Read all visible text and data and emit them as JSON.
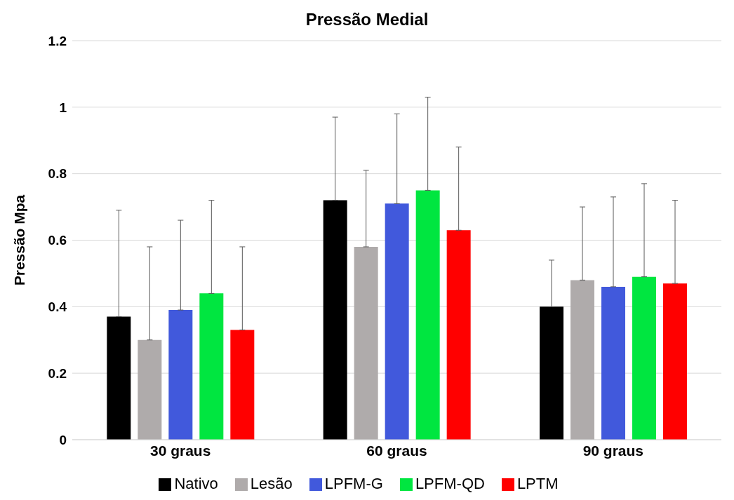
{
  "chart_data": {
    "type": "bar",
    "title": "Pressão Medial",
    "ylabel": "Pressão Mpa",
    "categories": [
      "30 graus",
      "60 graus",
      "90 graus"
    ],
    "series": [
      {
        "name": "Nativo",
        "color": "#000000",
        "values": [
          0.37,
          0.72,
          0.4
        ],
        "errors": [
          [
            0.37,
            0.69
          ],
          [
            0.72,
            0.97
          ],
          [
            0.4,
            0.54
          ]
        ]
      },
      {
        "name": "Lesão",
        "color": "#afabab",
        "values": [
          0.3,
          0.58,
          0.48
        ],
        "errors": [
          [
            0.3,
            0.58
          ],
          [
            0.58,
            0.81
          ],
          [
            0.48,
            0.7
          ]
        ]
      },
      {
        "name": "LPFM-G",
        "color": "#4159dc",
        "values": [
          0.39,
          0.71,
          0.46
        ],
        "errors": [
          [
            0.39,
            0.66
          ],
          [
            0.71,
            0.98
          ],
          [
            0.46,
            0.73
          ]
        ]
      },
      {
        "name": "LPFM-QD",
        "color": "#00e640",
        "values": [
          0.44,
          0.75,
          0.49
        ],
        "errors": [
          [
            0.44,
            0.72
          ],
          [
            0.75,
            1.03
          ],
          [
            0.49,
            0.77
          ]
        ]
      },
      {
        "name": "LPTM",
        "color": "#ff0000",
        "values": [
          0.33,
          0.63,
          0.47
        ],
        "errors": [
          [
            0.33,
            0.58
          ],
          [
            0.63,
            0.88
          ],
          [
            0.47,
            0.72
          ]
        ]
      }
    ],
    "ylim": [
      0,
      1.2
    ],
    "yticks": [
      0,
      0.2,
      0.4,
      0.6,
      0.8,
      1,
      1.2
    ],
    "grid": "y",
    "legend": "bottom"
  }
}
